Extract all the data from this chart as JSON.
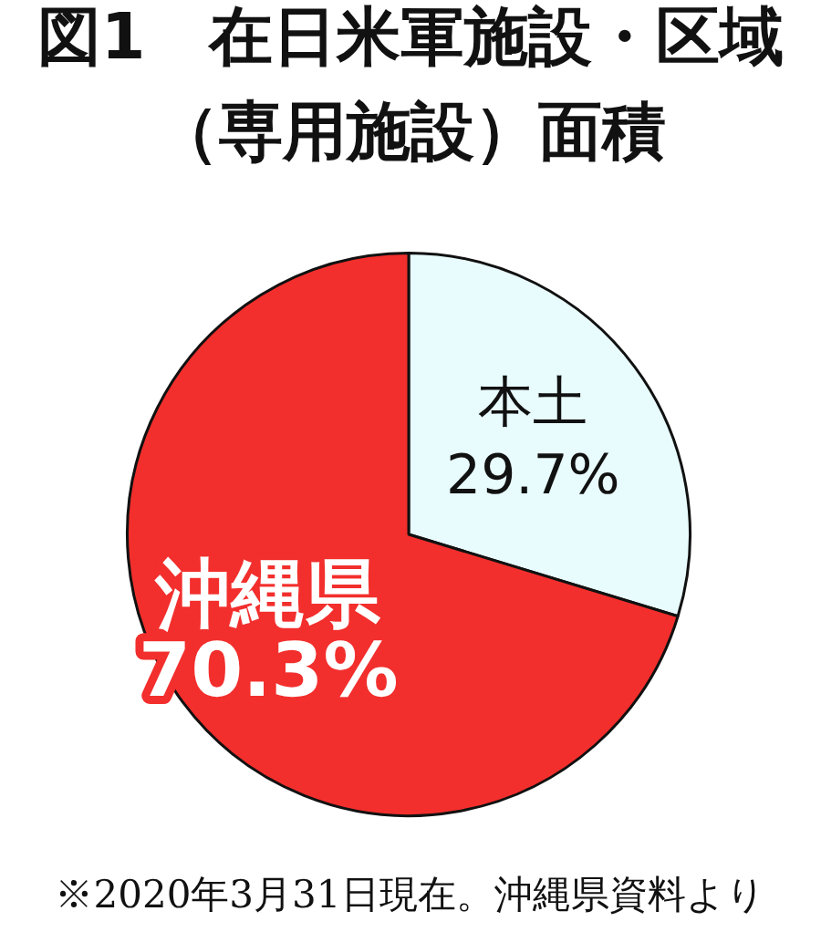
{
  "chart_data": {
    "type": "pie",
    "title": "図1　在日米軍施設・区域（専用施設）面積",
    "categories": [
      "本土",
      "沖縄県"
    ],
    "values": [
      29.7,
      70.3
    ],
    "colors": [
      "#e8fbfd",
      "#f22f2d"
    ],
    "value_labels": [
      "29.7%",
      "70.3%"
    ],
    "annotations": [
      "※2020年3月31日現在。沖縄県資料より"
    ]
  }
}
